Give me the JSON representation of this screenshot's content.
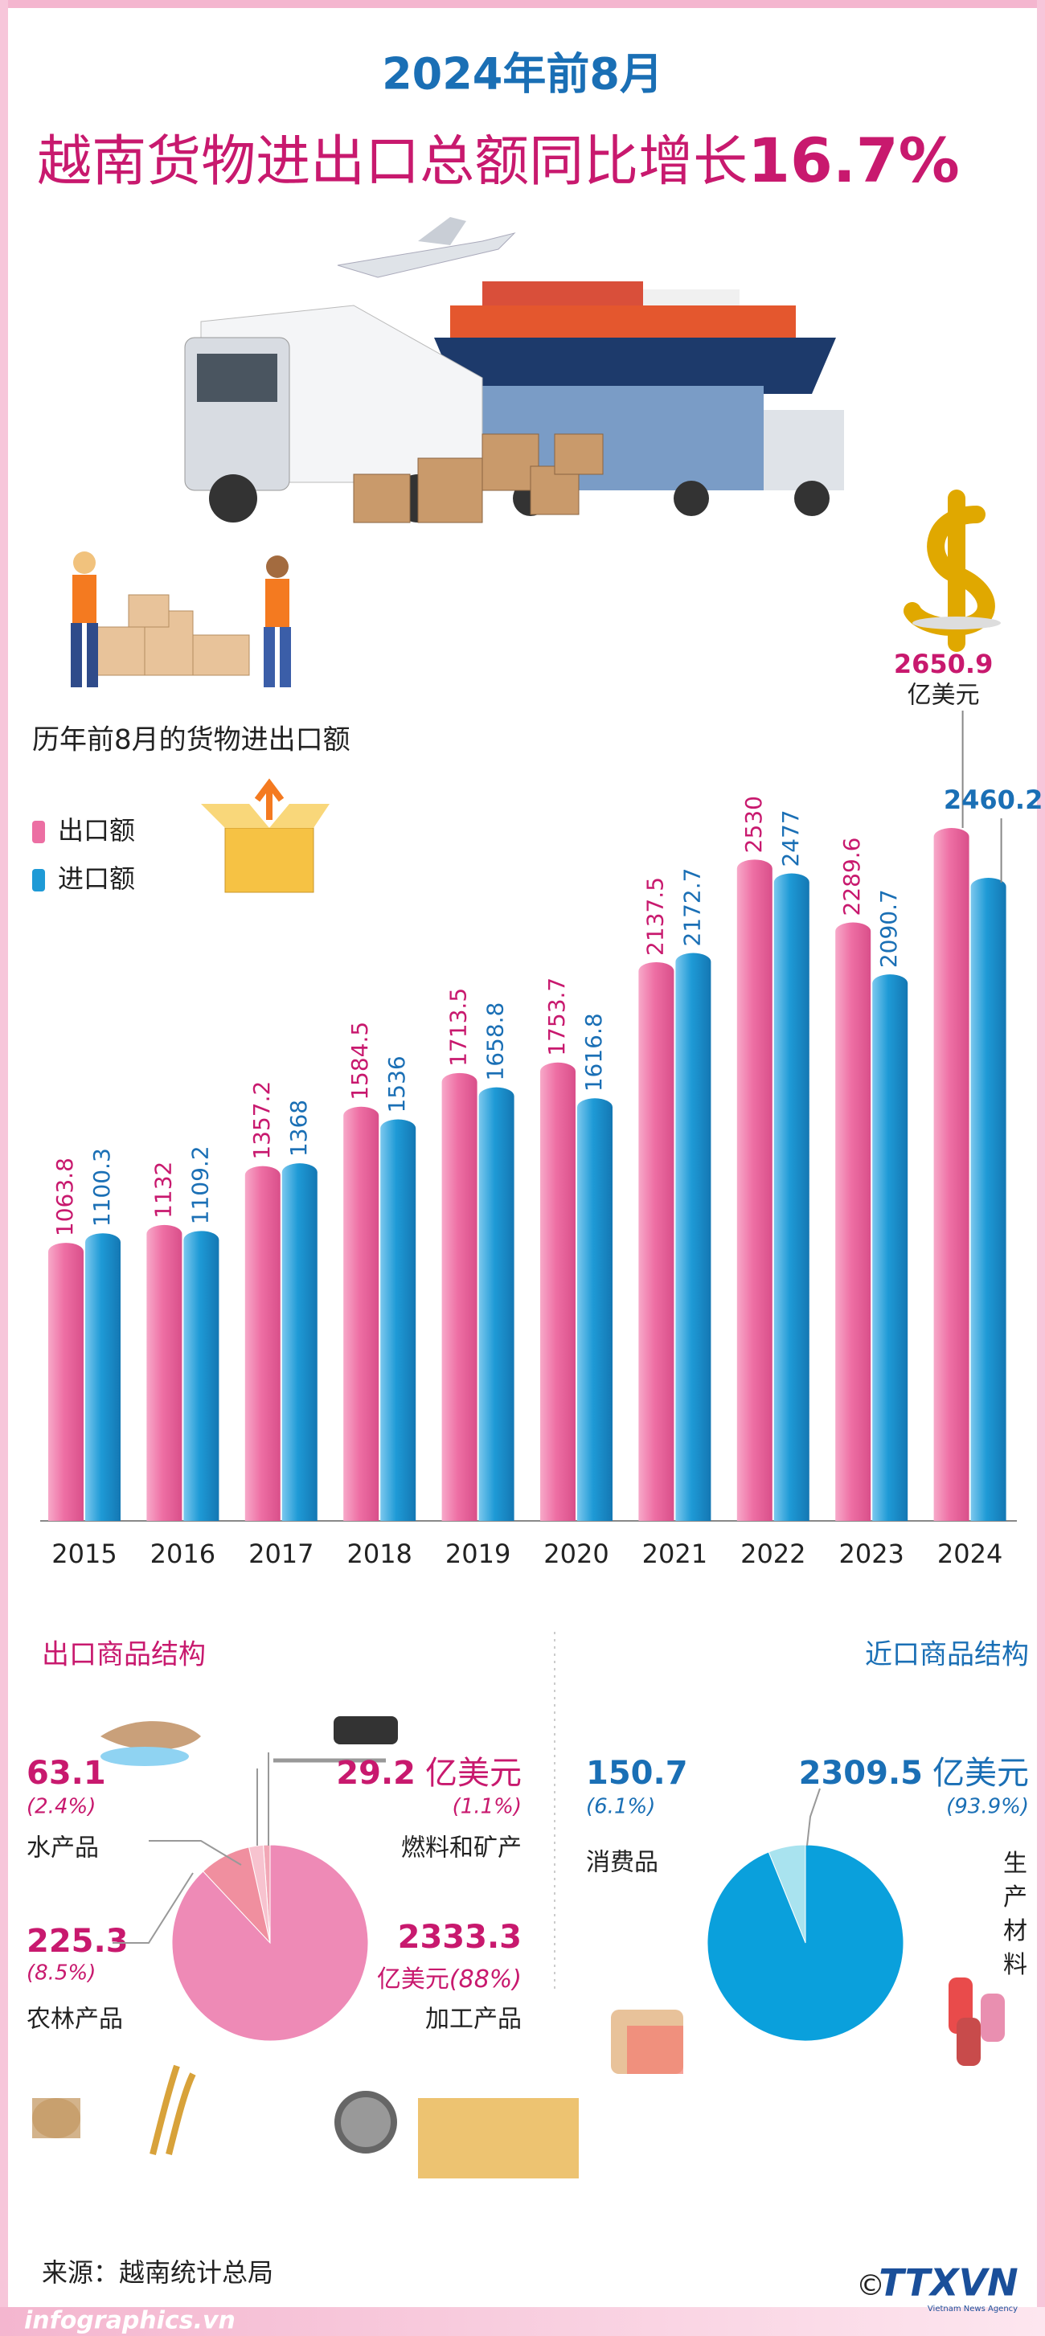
{
  "header": {
    "subtitle": "2024年前8月",
    "title": "越南货物进出口总额同比增长",
    "highlight": "16.7%"
  },
  "chart_data": [
    {
      "type": "bar",
      "title": "历年前8月的货物进出口额",
      "unit": "亿美元",
      "categories": [
        "2015",
        "2016",
        "2017",
        "2018",
        "2019",
        "2020",
        "2021",
        "2022",
        "2023",
        "2024"
      ],
      "series": [
        {
          "name": "出口额",
          "color": "#ec6fa3",
          "values": [
            1063.8,
            1132,
            1357.2,
            1584.5,
            1713.5,
            1753.7,
            2137.5,
            2530,
            2289.6,
            2650.9
          ]
        },
        {
          "name": "进口额",
          "color": "#1e9ad6",
          "values": [
            1100.3,
            1109.2,
            1368,
            1536,
            1658.8,
            1616.8,
            2172.7,
            2477,
            2090.7,
            2460.2
          ]
        }
      ]
    },
    {
      "type": "pie",
      "title": "出口商品结构",
      "unit": "亿美元",
      "labels": [
        "水产品",
        "燃料和矿产",
        "农林产品",
        "加工产品"
      ],
      "values": [
        63.1,
        29.2,
        225.3,
        2333.3
      ],
      "percent_labels": [
        "(2.4%)",
        "(1.1%)",
        "(8.5%)",
        "(88%)"
      ],
      "colors": [
        "#f7c3cf",
        "#f2a7b6",
        "#f08f9f",
        "#ee8ab6"
      ]
    },
    {
      "type": "pie",
      "title": "近口商品结构",
      "unit": "亿美元",
      "labels": [
        "消费品",
        "生产材料"
      ],
      "values": [
        150.7,
        2309.5
      ],
      "percent_labels": [
        "(6.1%)",
        "(93.9%)"
      ],
      "colors": [
        "#a9e3ef",
        "#0aa0dc"
      ]
    }
  ],
  "source": "来源：越南统计总局",
  "website": "infographics.vn",
  "credit": {
    "symbol": "©",
    "logo": "TTXVN",
    "agency": "Vietnam News Agency"
  }
}
